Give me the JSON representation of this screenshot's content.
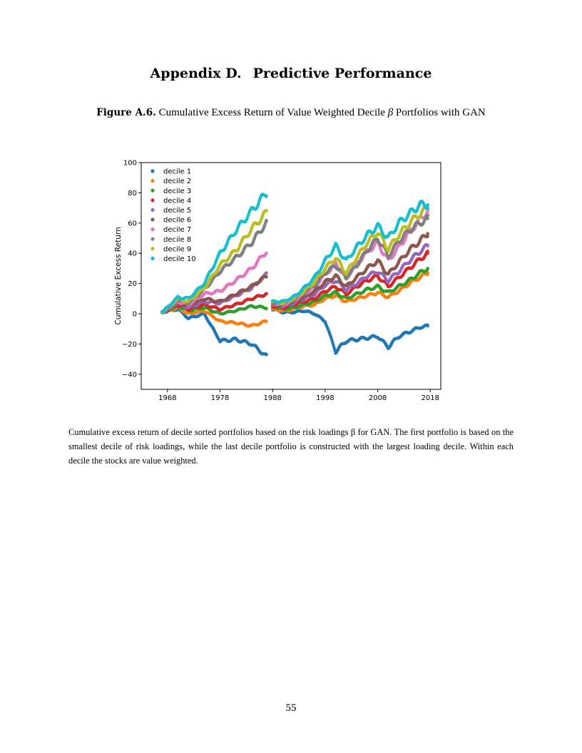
{
  "section": {
    "label": "Appendix D.",
    "title": "Predictive Performance"
  },
  "figure": {
    "label": "Figure A.6.",
    "caption_pre": "Cumulative Excess Return of Value Weighted Decile",
    "caption_symbol": "β",
    "caption_post": "Portfolios with GAN"
  },
  "chart_data": {
    "type": "scatter",
    "title": "",
    "xlabel": "",
    "ylabel": "Cumulative Excess Return",
    "xlim": [
      1963,
      2020
    ],
    "ylim": [
      -50,
      100
    ],
    "xticks": [
      1968,
      1978,
      1988,
      1998,
      2008,
      2018
    ],
    "yticks": [
      100,
      80,
      60,
      40,
      20,
      0,
      -20,
      -40
    ],
    "ytick_labels": [
      "100",
      "80",
      "60",
      "40",
      "20",
      "0",
      "−20",
      "−40"
    ],
    "grid": false,
    "legend_position": "top-left",
    "x": [
      1967,
      1970,
      1972,
      1975,
      1978,
      1981,
      1984,
      1986.8,
      1988,
      1990,
      1992,
      1994,
      1996,
      1998,
      2000,
      2002,
      2004,
      2006,
      2008,
      2010,
      2012,
      2014,
      2016,
      2017.5
    ],
    "breaks_after_x": [
      1986.8
    ],
    "series": [
      {
        "name": "decile 1",
        "color": "#1f77b4",
        "values": [
          1,
          3,
          -3,
          0,
          -18,
          -17,
          -20,
          -28,
          3,
          1,
          1,
          2,
          0,
          -5,
          -25,
          -18,
          -17,
          -16,
          -15,
          -22,
          -15,
          -12,
          -9,
          -8
        ]
      },
      {
        "name": "decile 2",
        "color": "#ff7f0e",
        "values": [
          1,
          4,
          0,
          2,
          -5,
          -6,
          -8,
          -5,
          3,
          2,
          3,
          5,
          6,
          10,
          12,
          8,
          10,
          12,
          14,
          11,
          15,
          20,
          24,
          27
        ]
      },
      {
        "name": "decile 3",
        "color": "#2ca02c",
        "values": [
          1,
          5,
          2,
          4,
          0,
          2,
          5,
          4,
          5,
          3,
          4,
          6,
          8,
          12,
          14,
          10,
          13,
          16,
          18,
          14,
          18,
          22,
          27,
          30
        ]
      },
      {
        "name": "decile 4",
        "color": "#d62728",
        "values": [
          1,
          6,
          3,
          6,
          3,
          6,
          10,
          13,
          5,
          4,
          6,
          8,
          10,
          15,
          18,
          13,
          18,
          22,
          25,
          18,
          24,
          30,
          36,
          40
        ]
      },
      {
        "name": "decile 5",
        "color": "#9467bd",
        "values": [
          1,
          7,
          4,
          8,
          7,
          12,
          17,
          26,
          6,
          5,
          7,
          10,
          13,
          19,
          22,
          16,
          20,
          25,
          28,
          22,
          28,
          35,
          41,
          45
        ]
      },
      {
        "name": "decile 6",
        "color": "#8c564b",
        "values": [
          1,
          7,
          5,
          10,
          8,
          13,
          18,
          25,
          6,
          6,
          8,
          11,
          15,
          21,
          25,
          18,
          24,
          30,
          35,
          26,
          34,
          42,
          48,
          53
        ]
      },
      {
        "name": "decile 7",
        "color": "#e377c2",
        "values": [
          1,
          8,
          6,
          13,
          15,
          22,
          30,
          41,
          7,
          6,
          9,
          13,
          18,
          26,
          33,
          24,
          33,
          41,
          47,
          35,
          44,
          54,
          62,
          68
        ]
      },
      {
        "name": "decile 8",
        "color": "#7f7f7f",
        "values": [
          1,
          9,
          7,
          16,
          28,
          37,
          47,
          60,
          7,
          7,
          10,
          14,
          19,
          27,
          32,
          24,
          32,
          42,
          50,
          38,
          48,
          55,
          60,
          63
        ]
      },
      {
        "name": "decile 9",
        "color": "#bcbd22",
        "values": [
          1,
          10,
          8,
          17,
          32,
          42,
          56,
          67,
          8,
          7,
          10,
          15,
          21,
          30,
          37,
          27,
          37,
          47,
          54,
          43,
          52,
          60,
          66,
          70
        ]
      },
      {
        "name": "decile 10",
        "color": "#17becf",
        "values": [
          1,
          11,
          10,
          20,
          40,
          55,
          68,
          80,
          8,
          8,
          11,
          17,
          24,
          35,
          45,
          35,
          44,
          52,
          58,
          50,
          60,
          66,
          72,
          72
        ]
      }
    ]
  },
  "note_text": "Cumulative excess return of decile sorted portfolios based on the risk loadings β for GAN. The first portfolio is based on the smallest decile of risk loadings, while the last decile portfolio is constructed with the largest loading decile. Within each decile the stocks are value weighted.",
  "page_number": "55"
}
